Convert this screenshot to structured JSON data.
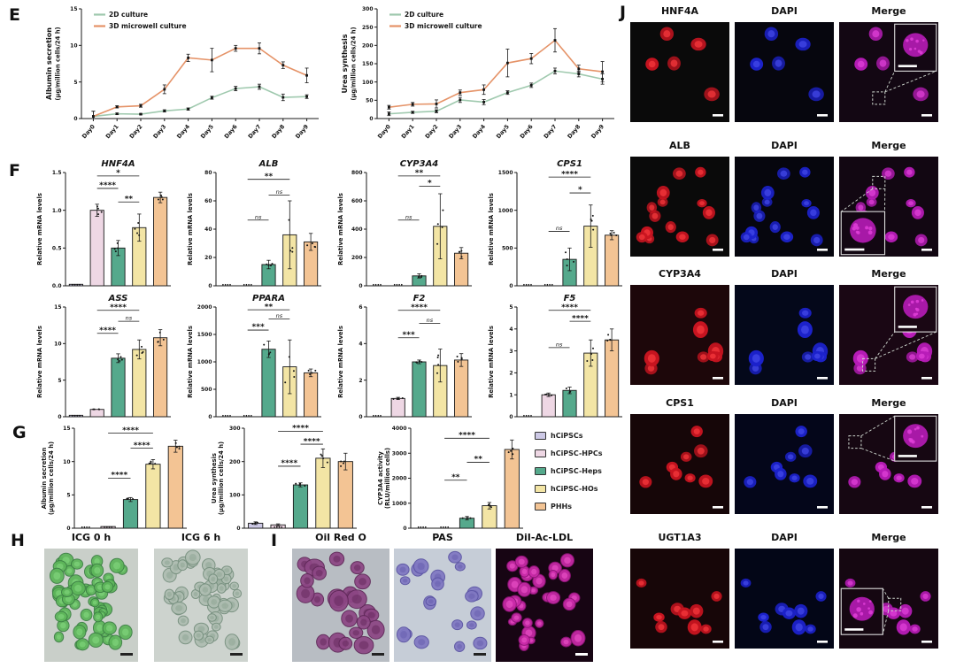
{
  "panels": {
    "E": {
      "label": "E"
    },
    "F": {
      "label": "F"
    },
    "G": {
      "label": "G",
      "legend": [
        {
          "label": "hCiPSCs",
          "color": "#cdc9e6"
        },
        {
          "label": "hCiPSC-HPCs",
          "color": "#eed7e4"
        },
        {
          "label": "hCiPSC-Heps",
          "color": "#55a98c"
        },
        {
          "label": "hCiPSC-HOs",
          "color": "#f3e5a5"
        },
        {
          "label": "PHHs",
          "color": "#f3c494"
        }
      ]
    },
    "H": {
      "label": "H",
      "images": [
        {
          "title": "ICG 0 h"
        },
        {
          "title": "ICG 6 h"
        }
      ]
    },
    "I": {
      "label": "I",
      "images": [
        {
          "title": "Oil Red O"
        },
        {
          "title": "PAS"
        },
        {
          "title": "DiI-Ac-LDL"
        }
      ]
    },
    "J": {
      "label": "J",
      "rows": [
        {
          "cols": [
            "HNF4A",
            "DAPI",
            "Merge"
          ]
        },
        {
          "cols": [
            "ALB",
            "DAPI",
            "Merge"
          ]
        },
        {
          "cols": [
            "CYP3A4",
            "DAPI",
            "Merge"
          ]
        },
        {
          "cols": [
            "CPS1",
            "DAPI",
            "Merge"
          ]
        },
        {
          "cols": [
            "UGT1A3",
            "DAPI",
            "Merge"
          ]
        }
      ]
    }
  },
  "groups": {
    "names": [
      "hCiPSCs",
      "hCiPSC-HPCs",
      "hCiPSC-Heps",
      "hCiPSC-HOs",
      "PHHs"
    ],
    "colors": [
      "#cdc9e6",
      "#eed7e4",
      "#55a98c",
      "#f3e5a5",
      "#f3c494"
    ]
  },
  "chart_data": [
    {
      "target": "c-e0",
      "type": "line",
      "title": "",
      "ylabel": [
        "Albumin secretion",
        "(μg/million cells/24 h)"
      ],
      "x": [
        "Day0",
        "Day1",
        "Day2",
        "Day3",
        "Day4",
        "Day5",
        "Day6",
        "Day7",
        "Day8",
        "Day9"
      ],
      "ylim": [
        0,
        15
      ],
      "yticks": [
        "0",
        "5",
        "10",
        "15"
      ],
      "series": [
        {
          "name": "2D culture",
          "color": "#9fc9ae",
          "values": [
            0.3,
            0.65,
            0.6,
            1.05,
            1.3,
            2.85,
            4.1,
            4.35,
            2.9,
            3.0
          ],
          "errors": [
            0.7,
            0.1,
            0.1,
            0.15,
            0.15,
            0.2,
            0.3,
            0.35,
            0.45,
            0.25
          ]
        },
        {
          "name": "3D microwell culture",
          "color": "#e59368",
          "values": [
            0.3,
            1.6,
            1.75,
            4.0,
            8.3,
            8.0,
            9.6,
            9.6,
            7.3,
            5.9
          ],
          "errors": [
            0.7,
            0.15,
            0.2,
            0.6,
            0.5,
            1.6,
            0.4,
            0.75,
            0.45,
            1.0
          ]
        }
      ]
    },
    {
      "target": "c-e1",
      "type": "line",
      "title": "",
      "ylabel": [
        "Urea synthesis",
        "(μg/million cells/24 h)"
      ],
      "x": [
        "Day0",
        "Day1",
        "Day2",
        "Day3",
        "Day4",
        "Day5",
        "Day6",
        "Day7",
        "Day8",
        "Day9"
      ],
      "ylim": [
        0,
        300
      ],
      "yticks": [
        "0",
        "50",
        "100",
        "150",
        "200",
        "250",
        "300"
      ],
      "series": [
        {
          "name": "2D culture",
          "color": "#9fc9ae",
          "values": [
            13,
            17,
            20,
            51,
            45,
            71,
            91,
            130,
            122,
            108
          ],
          "errors": [
            5,
            3,
            4,
            7,
            7,
            5,
            6,
            8,
            8,
            14
          ]
        },
        {
          "name": "3D microwell culture",
          "color": "#e59368",
          "values": [
            31,
            39,
            40,
            71,
            79,
            152,
            164,
            214,
            136,
            128
          ],
          "errors": [
            5,
            5,
            11,
            7,
            13,
            38,
            14,
            32,
            10,
            28
          ]
        }
      ]
    },
    {
      "target": "c-f0",
      "type": "bar",
      "title": "HNF4A",
      "ylabel": [
        "Relative mRNA levels"
      ],
      "ylim": [
        0,
        1.5
      ],
      "yticks": [
        "0.0",
        "0.5",
        "1.0",
        "1.5"
      ],
      "categories": [
        "hCiPSCs",
        "hCiPSC-HPCs",
        "hCiPSC-Heps",
        "hCiPSC-HOs",
        "PHHs"
      ],
      "values": [
        0.02,
        1.0,
        0.5,
        0.77,
        1.17
      ],
      "errors": [
        0.01,
        0.08,
        0.1,
        0.18,
        0.07
      ],
      "seed": 1,
      "sig": [
        {
          "a": 2,
          "b": 3,
          "t": "**",
          "f": 0.74
        },
        {
          "a": 1,
          "b": 2,
          "t": "****",
          "f": 0.86
        },
        {
          "a": 1,
          "b": 3,
          "t": "*",
          "f": 0.97
        }
      ]
    },
    {
      "target": "c-f1",
      "type": "bar",
      "title": "ALB",
      "ylabel": [
        "Relative mRNA levels"
      ],
      "ylim": [
        0,
        80
      ],
      "yticks": [
        "0",
        "20",
        "40",
        "60",
        "80"
      ],
      "categories": [
        "hCiPSCs",
        "hCiPSC-HPCs",
        "hCiPSC-Heps",
        "hCiPSC-HOs",
        "PHHs"
      ],
      "values": [
        0.3,
        0.8,
        15,
        36,
        31
      ],
      "errors": [
        0.2,
        0.4,
        3,
        24,
        6
      ],
      "seed": 2,
      "sig": [
        {
          "a": 1,
          "b": 2,
          "t": "ns",
          "f": 0.58
        },
        {
          "a": 2,
          "b": 3,
          "t": "ns",
          "f": 0.8
        },
        {
          "a": 1,
          "b": 3,
          "t": "**",
          "f": 0.94
        }
      ]
    },
    {
      "target": "c-f2",
      "type": "bar",
      "title": "CYP3A4",
      "ylabel": [
        "Relative mRNA levels"
      ],
      "ylim": [
        0,
        800
      ],
      "yticks": [
        "0",
        "200",
        "400",
        "600",
        "800"
      ],
      "categories": [
        "hCiPSCs",
        "hCiPSC-HPCs",
        "hCiPSC-Heps",
        "hCiPSC-HOs",
        "PHHs"
      ],
      "values": [
        1,
        1,
        70,
        420,
        230
      ],
      "errors": [
        0.5,
        0.5,
        15,
        230,
        40
      ],
      "seed": 3,
      "sig": [
        {
          "a": 1,
          "b": 2,
          "t": "ns",
          "f": 0.58
        },
        {
          "a": 2,
          "b": 3,
          "t": "*",
          "f": 0.88
        },
        {
          "a": 1,
          "b": 3,
          "t": "**",
          "f": 0.97
        }
      ]
    },
    {
      "target": "c-f3",
      "type": "bar",
      "title": "CPS1",
      "ylabel": [
        "Relative mRNA levels"
      ],
      "ylim": [
        0,
        1500
      ],
      "yticks": [
        "0",
        "500",
        "1000",
        "1500"
      ],
      "categories": [
        "hCiPSCs",
        "hCiPSC-HPCs",
        "hCiPSC-Heps",
        "hCiPSC-HOs",
        "PHHs"
      ],
      "values": [
        1,
        1,
        350,
        790,
        670
      ],
      "errors": [
        1,
        1,
        150,
        280,
        60
      ],
      "seed": 4,
      "sig": [
        {
          "a": 1,
          "b": 2,
          "t": "ns",
          "f": 0.48
        },
        {
          "a": 2,
          "b": 3,
          "t": "*",
          "f": 0.82
        },
        {
          "a": 1,
          "b": 3,
          "t": "****",
          "f": 0.96
        }
      ]
    },
    {
      "target": "c-f4",
      "type": "bar",
      "title": "ASS",
      "ylabel": [
        "Relative mRNA levels"
      ],
      "ylim": [
        0,
        15
      ],
      "yticks": [
        "0",
        "5",
        "10",
        "15"
      ],
      "categories": [
        "hCiPSCs",
        "hCiPSC-HPCs",
        "hCiPSC-Heps",
        "hCiPSC-HOs",
        "PHHs"
      ],
      "values": [
        0.2,
        1.0,
        8.0,
        9.2,
        10.8
      ],
      "errors": [
        0.05,
        0.1,
        0.6,
        1.3,
        1.1
      ],
      "seed": 5,
      "sig": [
        {
          "a": 1,
          "b": 2,
          "t": "****",
          "f": 0.76
        },
        {
          "a": 2,
          "b": 3,
          "t": "ns",
          "f": 0.87
        },
        {
          "a": 1,
          "b": 3,
          "t": "****",
          "f": 0.97
        }
      ]
    },
    {
      "target": "c-f5",
      "type": "bar",
      "title": "PPARA",
      "ylabel": [
        "Relative mRNA levels"
      ],
      "ylim": [
        0,
        2000
      ],
      "yticks": [
        "0",
        "500",
        "1000",
        "1500",
        "2000"
      ],
      "categories": [
        "hCiPSCs",
        "hCiPSC-HPCs",
        "hCiPSC-Heps",
        "hCiPSC-HOs",
        "PHHs"
      ],
      "values": [
        1,
        1,
        1230,
        910,
        800
      ],
      "errors": [
        1,
        1,
        150,
        490,
        70
      ],
      "seed": 6,
      "sig": [
        {
          "a": 1,
          "b": 2,
          "t": "***",
          "f": 0.79
        },
        {
          "a": 2,
          "b": 3,
          "t": "ns",
          "f": 0.89
        },
        {
          "a": 1,
          "b": 3,
          "t": "**",
          "f": 0.975
        }
      ]
    },
    {
      "target": "c-f6",
      "type": "bar",
      "title": "F2",
      "ylabel": [
        "Relative mRNA levels"
      ],
      "ylim": [
        0,
        6
      ],
      "yticks": [
        "0",
        "2",
        "4",
        "6"
      ],
      "categories": [
        "hCiPSCs",
        "hCiPSC-HPCs",
        "hCiPSC-Heps",
        "hCiPSC-HOs",
        "PHHs"
      ],
      "values": [
        0.05,
        1.0,
        3.0,
        2.8,
        3.1
      ],
      "errors": [
        0.02,
        0.06,
        0.1,
        0.9,
        0.35
      ],
      "seed": 7,
      "sig": [
        {
          "a": 1,
          "b": 2,
          "t": "***",
          "f": 0.72
        },
        {
          "a": 2,
          "b": 3,
          "t": "ns",
          "f": 0.85
        },
        {
          "a": 1,
          "b": 3,
          "t": "****",
          "f": 0.97
        }
      ]
    },
    {
      "target": "c-f7",
      "type": "bar",
      "title": "F5",
      "ylabel": [
        "Relative mRNA levels"
      ],
      "ylim": [
        0,
        5
      ],
      "yticks": [
        "0",
        "1",
        "2",
        "3",
        "4",
        "5"
      ],
      "categories": [
        "hCiPSCs",
        "hCiPSC-HPCs",
        "hCiPSC-Heps",
        "hCiPSC-HOs",
        "PHHs"
      ],
      "values": [
        0.05,
        1.0,
        1.2,
        2.9,
        3.5
      ],
      "errors": [
        0.02,
        0.08,
        0.15,
        0.6,
        0.5
      ],
      "seed": 8,
      "sig": [
        {
          "a": 1,
          "b": 2,
          "t": "ns",
          "f": 0.63
        },
        {
          "a": 2,
          "b": 3,
          "t": "****",
          "f": 0.87
        },
        {
          "a": 1,
          "b": 3,
          "t": "****",
          "f": 0.97
        }
      ]
    },
    {
      "target": "c-g0",
      "type": "bar",
      "title": "",
      "ylabel": [
        "Albumin secretion",
        "(μg/million cells/24 h)"
      ],
      "ylim": [
        0,
        15
      ],
      "yticks": [
        "0",
        "5",
        "10",
        "15"
      ],
      "categories": [
        "hCiPSCs",
        "hCiPSC-HPCs",
        "hCiPSC-Heps",
        "hCiPSC-HOs",
        "PHHs"
      ],
      "values": [
        0.05,
        0.25,
        4.3,
        9.6,
        12.3
      ],
      "errors": [
        0.03,
        0.1,
        0.3,
        0.7,
        0.9
      ],
      "seed": 9,
      "sig": [
        {
          "a": 1,
          "b": 2,
          "t": "****",
          "f": 0.5
        },
        {
          "a": 2,
          "b": 3,
          "t": "****",
          "f": 0.8
        },
        {
          "a": 1,
          "b": 3,
          "t": "****",
          "f": 0.95
        }
      ]
    },
    {
      "target": "c-g1",
      "type": "bar",
      "title": "",
      "ylabel": [
        "Urea synthesis",
        "(μg/million cells/24 h)"
      ],
      "ylim": [
        0,
        300
      ],
      "yticks": [
        "0",
        "100",
        "200",
        "300"
      ],
      "categories": [
        "hCiPSCs",
        "hCiPSC-HPCs",
        "hCiPSC-Heps",
        "hCiPSC-HOs",
        "PHHs"
      ],
      "values": [
        15,
        10,
        130,
        210,
        200
      ],
      "errors": [
        4,
        3,
        6,
        28,
        25
      ],
      "seed": 10,
      "sig": [
        {
          "a": 1,
          "b": 2,
          "t": "****",
          "f": 0.62
        },
        {
          "a": 2,
          "b": 3,
          "t": "****",
          "f": 0.84
        },
        {
          "a": 1,
          "b": 3,
          "t": "****",
          "f": 0.97
        }
      ]
    },
    {
      "target": "c-g2",
      "type": "bar",
      "title": "",
      "ylabel": [
        "CYP3A4 activity",
        "(RLU/million cells)"
      ],
      "ylim": [
        0,
        4000
      ],
      "yticks": [
        "0",
        "1000",
        "2000",
        "3000",
        "4000"
      ],
      "categories": [
        "hCiPSCs",
        "hCiPSC-HPCs",
        "hCiPSC-Heps",
        "hCiPSC-HOs",
        "PHHs"
      ],
      "values": [
        30,
        25,
        400,
        900,
        3150
      ],
      "errors": [
        10,
        8,
        70,
        130,
        380
      ],
      "seed": 11,
      "sig": [
        {
          "a": 1,
          "b": 2,
          "t": "**",
          "f": 0.48
        },
        {
          "a": 2,
          "b": 3,
          "t": "**",
          "f": 0.66
        },
        {
          "a": 1,
          "b": 3,
          "t": "****",
          "f": 0.9
        }
      ]
    }
  ],
  "microscopy": {
    "singles": {
      "m-h0": {
        "bg": "#c9cfc9",
        "cell": "#5db55a",
        "rim": "#3c7f44",
        "inner": "#83d87f",
        "n": 60,
        "rmin": 4.5,
        "rmax": 8.5,
        "seed": 101,
        "bar": "#222222"
      },
      "m-h1": {
        "bg": "#cdd3ce",
        "cell": "#aebdb1",
        "rim": "#77907f",
        "inner": "#93a897",
        "n": 52,
        "rmin": 4.5,
        "rmax": 8.5,
        "seed": 102,
        "bar": "#222222"
      },
      "m-i0": {
        "bg": "#b8bdc3",
        "cell": "#8c4684",
        "rim": "#5f2758",
        "inner": "#6b2d63",
        "n": 24,
        "rmin": 7,
        "rmax": 11.5,
        "seed": 103,
        "bar": "#222222"
      },
      "m-i1": {
        "bg": "#c6cdd7",
        "cell": "#8078c2",
        "rim": "#5a53a3",
        "inner": "#6a62b0",
        "n": 20,
        "rmin": 5,
        "rmax": 8.5,
        "seed": 104,
        "bar": "#222222"
      },
      "m-i2": {
        "bg": "#170513",
        "cell": "#c92aa8",
        "rim": "#8f1578",
        "inner": "#f055cc",
        "n": 30,
        "rmin": 4.5,
        "rmax": 8,
        "seed": 105,
        "bar": "#ffffff"
      }
    },
    "j_channel_colors": {
      "red": {
        "base": "#c81420",
        "inner": "#f5383c"
      },
      "blue": {
        "base": "#1c22cc",
        "inner": "#4348e8"
      },
      "merge": {
        "base": "#b81cb8",
        "inner": "#e040d8"
      }
    },
    "j_rows": [
      {
        "seed": 201,
        "n": 5,
        "rmin": 6.5,
        "rmax": 9,
        "bgs": [
          "#0a0a0a",
          "#06060e",
          "#130713"
        ],
        "inset": [
          0.56,
          0.02,
          0.42,
          0.47
        ],
        "target": [
          0.4,
          0.76
        ]
      },
      {
        "seed": 202,
        "n": 14,
        "rmin": 5,
        "rmax": 7.5,
        "bgs": [
          "#0a0a0a",
          "#06060e",
          "#120712"
        ],
        "inset": [
          0.02,
          0.55,
          0.44,
          0.43
        ],
        "target": [
          0.4,
          0.26
        ]
      },
      {
        "seed": 203,
        "n": 8,
        "rmin": 6,
        "rmax": 9,
        "bgs": [
          "#1d070a",
          "#04081a",
          "#1a0714"
        ],
        "inset": [
          0.56,
          0.02,
          0.42,
          0.45
        ],
        "target": [
          0.3,
          0.8
        ]
      },
      {
        "seed": 204,
        "n": 8,
        "rmin": 5.5,
        "rmax": 8,
        "bgs": [
          "#160608",
          "#04061a",
          "#160712"
        ],
        "inset": [
          0.56,
          0.02,
          0.42,
          0.45
        ],
        "target": [
          0.16,
          0.28
        ]
      },
      {
        "seed": 205,
        "n": 9,
        "rmin": 5.5,
        "rmax": 8,
        "bgs": [
          "#170608",
          "#030617",
          "#150711"
        ],
        "inset": [
          0.02,
          0.4,
          0.42,
          0.46
        ],
        "target": [
          0.56,
          0.56
        ]
      }
    ],
    "overlay_color": "#cfd8cf",
    "scalebar_color": "#ffffff"
  }
}
